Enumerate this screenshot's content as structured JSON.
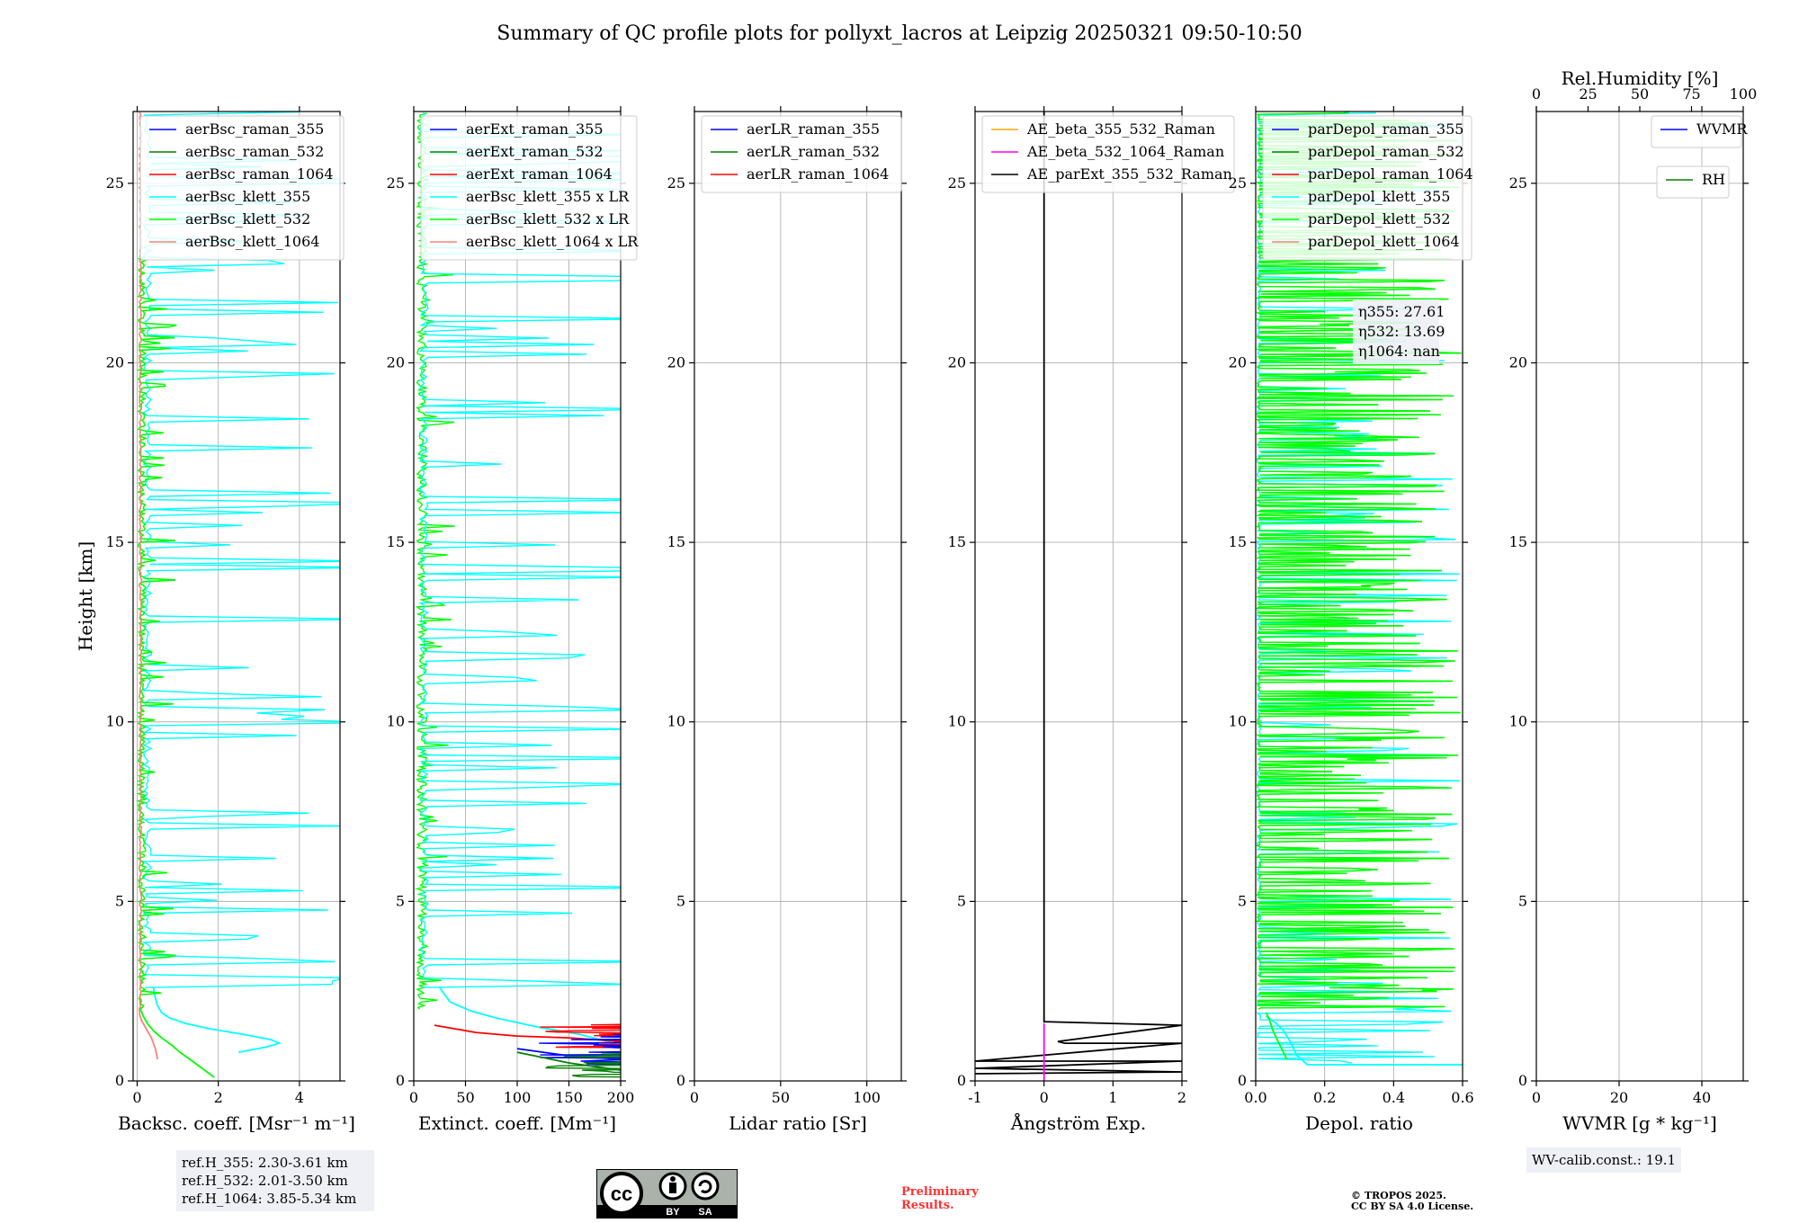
{
  "title": "Summary of QC profile plots for pollyxt_lacros at Leipzig 20250321 09:50-10:50",
  "colors": {
    "blue": "#0000ff",
    "green": "#008000",
    "red": "#ff0000",
    "cyan": "#00ffff",
    "lime": "#00ff00",
    "salmon": "#fa8072",
    "orange": "#ffa500",
    "magenta": "#ff00ff",
    "black": "#000000",
    "grid": "#b0b0b0"
  },
  "chart_data": [
    {
      "type": "line",
      "id": "backscatter",
      "xlabel": "Backsc. coeff. [Msr⁻¹ m⁻¹]",
      "ylabel": "Height [km]",
      "xlim": [
        -0.1,
        5
      ],
      "ylim": [
        0,
        27
      ],
      "xticks": [
        0,
        2,
        4
      ],
      "yticks": [
        0,
        5,
        10,
        15,
        20,
        25
      ],
      "legend": [
        "aerBsc_raman_355",
        "aerBsc_raman_532",
        "aerBsc_raman_1064",
        "aerBsc_klett_355",
        "aerBsc_klett_532",
        "aerBsc_klett_1064"
      ],
      "series": [
        {
          "name": "aerBsc_klett_355",
          "color": "cyan",
          "noise": "cyan_bsc",
          "x": [
            2.5,
            3.2,
            3.5,
            3.3,
            2.6,
            1.8,
            1.2,
            0.8,
            0.6,
            0.5,
            0.45,
            0.4
          ],
          "y": [
            0.8,
            0.95,
            1.05,
            1.15,
            1.3,
            1.45,
            1.6,
            1.75,
            1.9,
            2.1,
            2.3,
            2.6
          ]
        },
        {
          "name": "aerBsc_klett_532",
          "color": "lime",
          "noise": "lime_bsc",
          "x": [
            1.9,
            1.6,
            1.3,
            1.05,
            0.85,
            0.6,
            0.4,
            0.25,
            0.15,
            0.08
          ],
          "y": [
            0.1,
            0.35,
            0.6,
            0.8,
            1.0,
            1.2,
            1.4,
            1.6,
            1.8,
            2.0
          ]
        },
        {
          "name": "aerBsc_klett_1064",
          "color": "salmon",
          "noise": "salmon",
          "x": [
            0.5,
            0.45,
            0.35,
            0.2,
            0.1,
            0.05
          ],
          "y": [
            0.6,
            0.9,
            1.2,
            1.5,
            1.7,
            1.9
          ]
        }
      ]
    },
    {
      "type": "line",
      "id": "extinction",
      "xlabel": "Extinct. coeff. [Mm⁻¹]",
      "xlim": [
        0,
        200
      ],
      "ylim": [
        0,
        27
      ],
      "xticks": [
        0,
        50,
        100,
        150,
        200
      ],
      "yticks": [
        0,
        5,
        10,
        15,
        20,
        25
      ],
      "legend": [
        "aerExt_raman_355",
        "aerExt_raman_532",
        "aerExt_raman_1064",
        "aerBsc_klett_355 x LR",
        "aerBsc_klett_532 x LR",
        "aerBsc_klett_1064 x LR"
      ],
      "series": [
        {
          "name": "aerBsc_klett_355 x LR",
          "color": "cyan",
          "noise": "cyan_ext",
          "x": [
            200,
            160,
            120,
            80,
            55,
            35,
            25
          ],
          "y": [
            1.0,
            1.3,
            1.5,
            1.75,
            1.95,
            2.2,
            2.6
          ]
        },
        {
          "name": "aerExt_raman_1064",
          "color": "red",
          "noise": "red_ext",
          "x": [
            200,
            150,
            100,
            60,
            40,
            20
          ],
          "y": [
            1.1,
            1.2,
            1.25,
            1.35,
            1.45,
            1.55
          ]
        },
        {
          "name": "aerExt_raman_355",
          "color": "blue",
          "noise": "blue_ext",
          "x": [
            200,
            150,
            100
          ],
          "y": [
            0.6,
            0.7,
            0.9
          ]
        },
        {
          "name": "aerExt_raman_532",
          "color": "green",
          "noise": "green_ext",
          "x": [
            200,
            150,
            100
          ],
          "y": [
            0.3,
            0.5,
            0.8
          ]
        }
      ]
    },
    {
      "type": "line",
      "id": "lidar_ratio",
      "xlabel": "Lidar ratio [Sr]",
      "xlim": [
        0,
        120
      ],
      "ylim": [
        0,
        27
      ],
      "xticks": [
        0,
        50,
        100
      ],
      "yticks": [
        0,
        5,
        10,
        15,
        20,
        25
      ],
      "legend": [
        "aerLR_raman_355",
        "aerLR_raman_532",
        "aerLR_raman_1064"
      ],
      "series": []
    },
    {
      "type": "line",
      "id": "angstrom",
      "xlabel": "Ångström Exp.",
      "xlim": [
        -1,
        2
      ],
      "ylim": [
        0,
        27
      ],
      "xticks": [
        -1,
        0,
        1,
        2
      ],
      "yticks": [
        0,
        5,
        10,
        15,
        20,
        25
      ],
      "legend": [
        "AE_beta_355_532_Raman",
        "AE_beta_532_1064_Raman",
        "AE_parExt_355_532_Raman"
      ],
      "series": [
        {
          "name": "AE_parExt_355_532_Raman",
          "color": "black",
          "x": [
            0,
            0,
            2,
            0.2,
            0.3,
            2,
            -1,
            2,
            -1,
            2,
            -1
          ],
          "y": [
            27,
            1.65,
            1.55,
            1.1,
            1.05,
            1.05,
            0.55,
            0.55,
            0.35,
            0.25,
            0.2
          ]
        },
        {
          "name": "AE_beta_532_1064_Raman",
          "color": "magenta",
          "x": [
            0,
            0
          ],
          "y": [
            0,
            1.6
          ]
        }
      ]
    },
    {
      "type": "line",
      "id": "depol",
      "xlabel": "Depol. ratio",
      "xlim": [
        0,
        0.6
      ],
      "ylim": [
        0,
        27
      ],
      "xticks": [
        0,
        0.2,
        0.4,
        0.6
      ],
      "xtick_labels": [
        "0.0",
        "0.2",
        "0.4",
        "0.6"
      ],
      "yticks": [
        0,
        5,
        10,
        15,
        20,
        25
      ],
      "legend": [
        "parDepol_raman_355",
        "parDepol_raman_532",
        "parDepol_raman_1064",
        "parDepol_klett_355",
        "parDepol_klett_532",
        "parDepol_klett_1064"
      ],
      "annotations": [
        "η355: 27.61",
        "η532: 13.69",
        "η1064: nan"
      ],
      "series": [
        {
          "name": "parDepol_klett_355",
          "color": "cyan",
          "noise": "cyan_dep",
          "x": [
            0.6,
            0.15,
            0.12,
            0.1,
            0.08,
            0.06,
            0.03
          ],
          "y": [
            0.45,
            0.45,
            0.7,
            1.1,
            1.4,
            1.6,
            1.8
          ]
        },
        {
          "name": "parDepol_klett_532",
          "color": "lime",
          "noise": "lime_dep",
          "x": [
            0.09,
            0.07,
            0.05,
            0.04,
            0.03
          ],
          "y": [
            0.6,
            1.0,
            1.4,
            1.7,
            1.9
          ]
        }
      ]
    },
    {
      "type": "line",
      "id": "wv",
      "xlabel": "WVMR [g * kg⁻¹]",
      "top_xlabel": "Rel.Humidity [%]",
      "xlim": [
        0,
        50
      ],
      "ylim": [
        0,
        27
      ],
      "xticks": [
        0,
        20,
        40
      ],
      "yticks": [
        0,
        5,
        10,
        15,
        20,
        25
      ],
      "top_xticks": [
        0,
        25,
        50,
        75,
        100
      ],
      "legend": [
        "WVMR"
      ],
      "legend2": [
        "RH"
      ],
      "series": []
    }
  ],
  "info": {
    "ref_h": [
      "ref.H_355: 2.30-3.61 km",
      "ref.H_532: 2.01-3.50 km",
      "ref.H_1064: 3.85-5.34 km"
    ],
    "wv_calib": "WV-calib.const.: 19.1",
    "preliminary": [
      "Preliminary",
      "Results."
    ],
    "copyright": [
      "© TROPOS 2025.",
      "CC BY SA 4.0 License."
    ],
    "cc_badge": [
      "cc",
      "BY",
      "SA"
    ]
  }
}
